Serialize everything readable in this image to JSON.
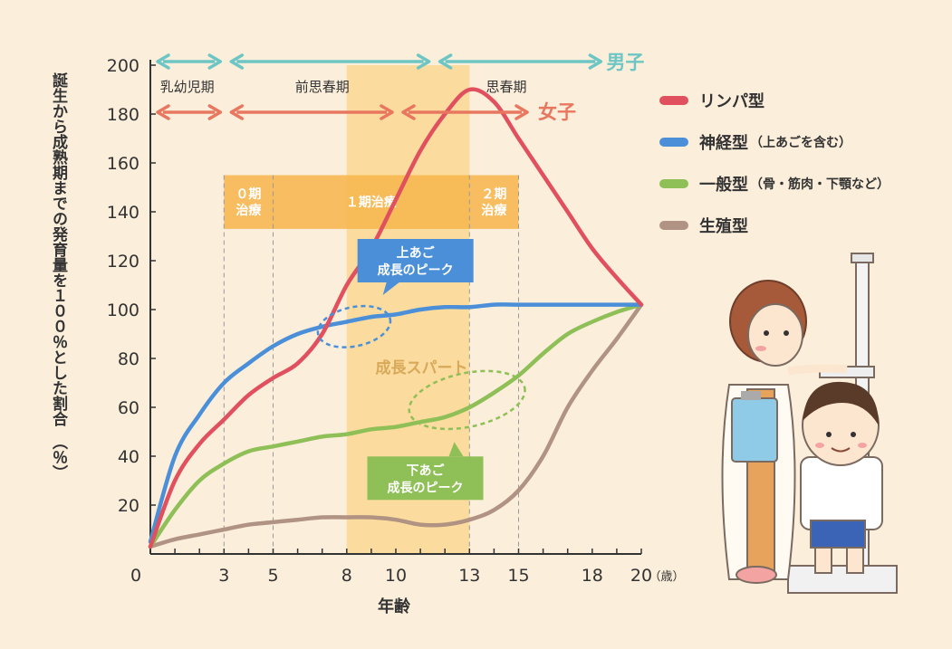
{
  "chart_data": {
    "type": "line",
    "ylabel": "誕生から成熟期までの発育量を１００％とした割合　（％）",
    "xlabel": "年齢",
    "x_unit": "（歳）",
    "xlim": [
      0,
      20
    ],
    "ylim": [
      0,
      200
    ],
    "x_ticks": [
      0,
      3,
      5,
      8,
      10,
      13,
      15,
      18,
      20
    ],
    "x_ticks_labeled": [
      0,
      3,
      5,
      8,
      10,
      13,
      15,
      18,
      20
    ],
    "y_ticks": [
      20,
      40,
      60,
      80,
      100,
      120,
      140,
      160,
      180,
      200
    ],
    "series": [
      {
        "name": "リンパ型",
        "sub": "",
        "color": "#e0505e",
        "x": [
          0,
          1,
          2,
          3,
          4,
          5,
          6,
          7,
          8,
          9,
          10,
          11,
          12,
          13,
          14,
          15,
          16,
          17,
          18,
          19,
          20
        ],
        "y": [
          3,
          30,
          45,
          55,
          65,
          72,
          78,
          90,
          110,
          125,
          145,
          165,
          180,
          190,
          185,
          170,
          155,
          140,
          125,
          113,
          102
        ]
      },
      {
        "name": "神経型",
        "sub": "（上あごを含む）",
        "color": "#4a8fd8",
        "x": [
          0,
          1,
          2,
          3,
          4,
          5,
          6,
          7,
          8,
          9,
          10,
          11,
          12,
          13,
          14,
          15,
          16,
          17,
          18,
          19,
          20
        ],
        "y": [
          5,
          40,
          57,
          70,
          78,
          85,
          90,
          93,
          95,
          97,
          98,
          100,
          101,
          101,
          102,
          102,
          102,
          102,
          102,
          102,
          102
        ]
      },
      {
        "name": "一般型",
        "sub": "（骨・筋肉・下顎など）",
        "color": "#8fbf57",
        "x": [
          0,
          1,
          2,
          3,
          4,
          5,
          6,
          7,
          8,
          9,
          10,
          11,
          12,
          13,
          14,
          15,
          16,
          17,
          18,
          19,
          20
        ],
        "y": [
          3,
          18,
          30,
          37,
          42,
          44,
          46,
          48,
          49,
          51,
          52,
          54,
          56,
          60,
          66,
          73,
          82,
          90,
          95,
          99,
          102
        ]
      },
      {
        "name": "生殖型",
        "sub": "",
        "color": "#b09383",
        "x": [
          0,
          1,
          2,
          3,
          4,
          5,
          6,
          7,
          8,
          9,
          10,
          11,
          12,
          13,
          14,
          15,
          16,
          17,
          18,
          19,
          20
        ],
        "y": [
          3,
          6,
          8,
          10,
          12,
          13,
          14,
          15,
          15,
          15,
          14,
          12,
          12,
          14,
          18,
          26,
          40,
          60,
          75,
          88,
          102
        ]
      }
    ],
    "shaded_band": {
      "x": [
        8,
        13
      ],
      "label": "成長スパート",
      "color": "#fbd48a"
    },
    "treatment_band": {
      "y": [
        133,
        155
      ],
      "color": "#f6b64e",
      "segments": [
        {
          "x": [
            3,
            5
          ],
          "label": "０期\n治療"
        },
        {
          "x": [
            5,
            13
          ],
          "label": "１期治療"
        },
        {
          "x": [
            13,
            15
          ],
          "label": "２期\n治療"
        }
      ]
    },
    "vlines_dashed": [
      3,
      5,
      13,
      15
    ],
    "periods_male": {
      "label": "男子",
      "color": "#6ec6c4",
      "ranges": [
        [
          0,
          3
        ],
        [
          3,
          11.5
        ],
        [
          11.5,
          18.5
        ]
      ]
    },
    "periods_female": {
      "label": "女子",
      "color": "#e8775f",
      "ranges": [
        [
          0,
          3
        ],
        [
          3,
          10
        ],
        [
          10,
          15.5
        ]
      ]
    },
    "period_labels": [
      {
        "x": 1.5,
        "text": "乳幼児期"
      },
      {
        "x": 7,
        "text": "前思春期"
      },
      {
        "x": 14.5,
        "text": "思春期"
      }
    ],
    "callouts": [
      {
        "text": "上あご\n成長のピーク",
        "color": "#4a8fd8",
        "ellipse": {
          "cx": 8.3,
          "cy": 93,
          "rx": 1.5,
          "ry": 8
        },
        "box_x": 10.8,
        "box_y": 120
      },
      {
        "text": "下あご\n成長のピーク",
        "color": "#8fbf57",
        "ellipse": {
          "cx": 12.9,
          "cy": 63,
          "rx": 2.4,
          "ry": 11
        },
        "box_x": 11.2,
        "box_y": 31
      }
    ]
  }
}
